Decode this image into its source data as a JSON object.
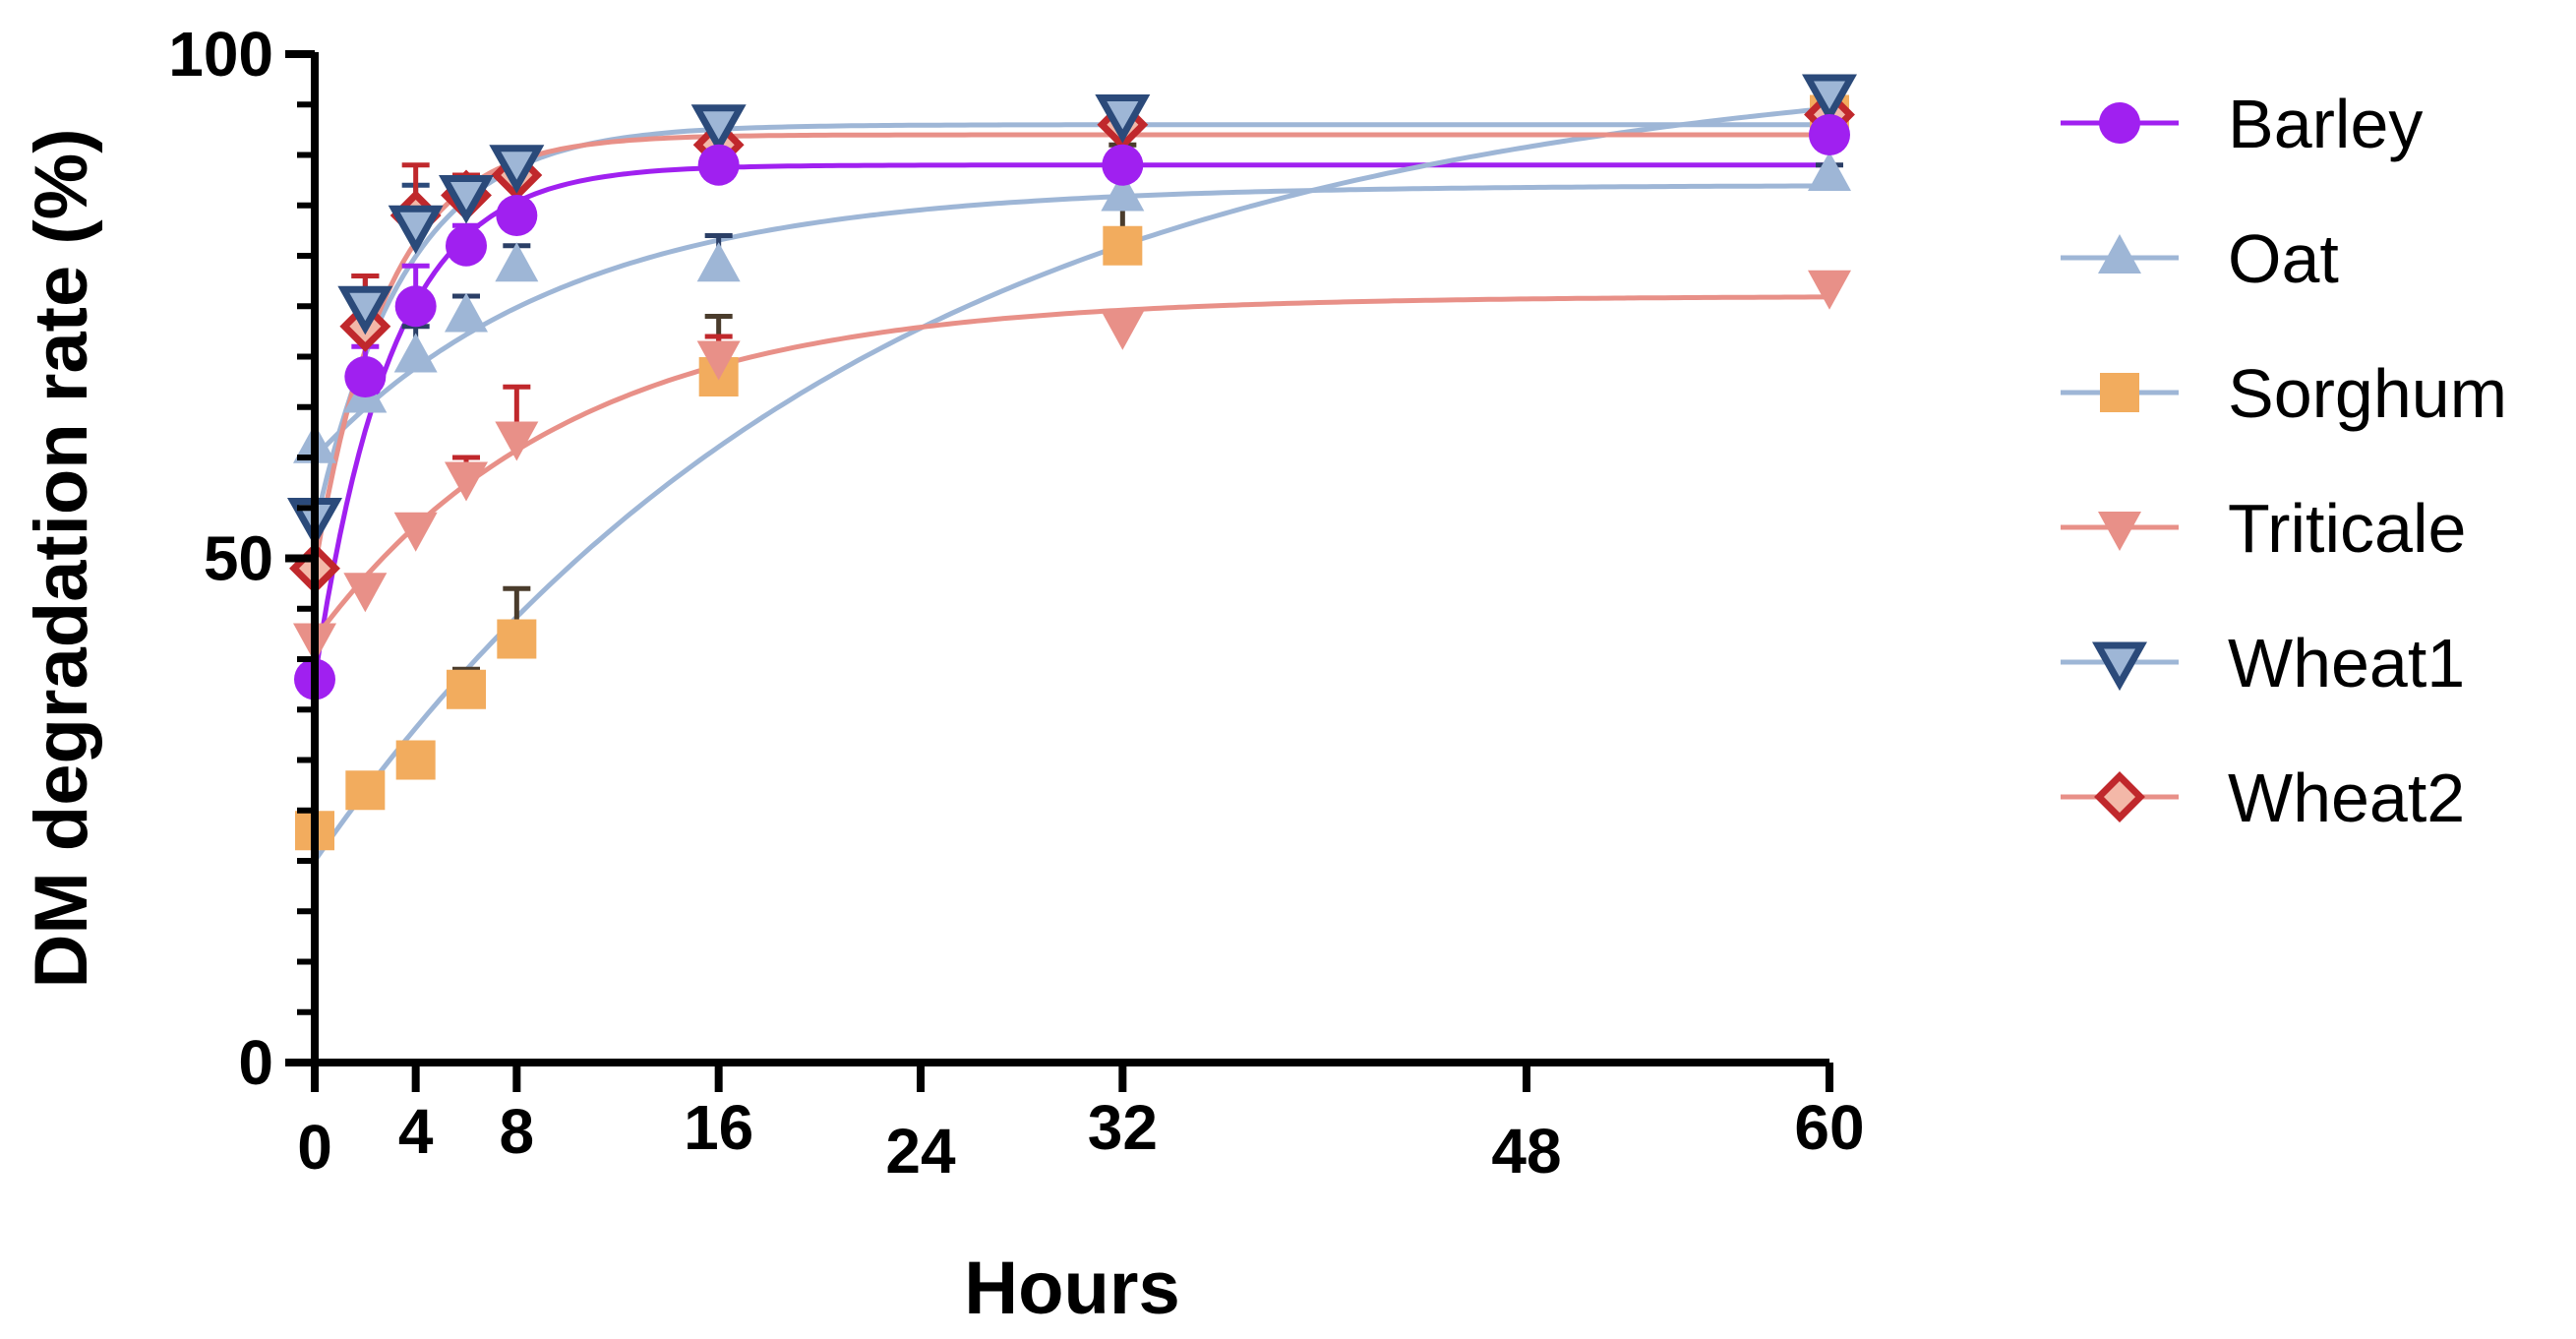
{
  "chart_data": {
    "type": "line",
    "title": "",
    "xlabel": "Hours",
    "ylabel": "DM degradation rate (%)",
    "xlim": [
      0,
      60
    ],
    "ylim": [
      0,
      100
    ],
    "x_ticks": [
      0,
      4,
      8,
      16,
      24,
      32,
      48,
      60
    ],
    "y_ticks": [
      0,
      50,
      100
    ],
    "y_minor_step": 5,
    "grid": false,
    "legend_position": "right",
    "series": [
      {
        "name": "Barley",
        "marker": "circle",
        "color": "#a020f0",
        "marker_color": "#a020f0",
        "error_color": "#a020f0",
        "x": [
          0,
          2,
          4,
          6,
          8,
          16,
          32,
          60
        ],
        "y": [
          38,
          68,
          75,
          81,
          84,
          89,
          89,
          92
        ],
        "err": [
          0,
          3,
          4,
          2,
          4,
          1,
          1,
          1
        ],
        "fit": {
          "a": 38,
          "b": 51,
          "c": 0.33
        }
      },
      {
        "name": "Oat",
        "marker": "triangle-up",
        "color": "#9eb6d6",
        "marker_color": "#9eb6d6",
        "error_color": "#2b3f66",
        "x": [
          0,
          2,
          4,
          6,
          8,
          16,
          32,
          60
        ],
        "y": [
          61,
          66,
          70,
          74,
          79,
          79,
          86,
          88
        ],
        "err": [
          0,
          3,
          3,
          2,
          2,
          3,
          2,
          1
        ],
        "fit": {
          "a": 60,
          "b": 27,
          "c": 0.1
        }
      },
      {
        "name": "Sorghum",
        "marker": "square",
        "color": "#9eb6d6",
        "marker_color": "#f2ac5e",
        "error_color": "#4a3c2c",
        "x": [
          0,
          2,
          4,
          6,
          8,
          16,
          32,
          60
        ],
        "y": [
          23,
          27,
          30,
          37,
          42,
          68,
          81,
          94
        ],
        "err": [
          0,
          1,
          1,
          2,
          5,
          6,
          10,
          1
        ],
        "fit": {
          "a": 20,
          "b": 80,
          "c": 0.045
        }
      },
      {
        "name": "Triticale",
        "marker": "triangle-down",
        "color": "#e89088",
        "marker_color": "#e89088",
        "error_color": "#c0282c",
        "x": [
          0,
          2,
          4,
          6,
          8,
          16,
          32,
          60
        ],
        "y": [
          42,
          47,
          53,
          58,
          62,
          70,
          73,
          77
        ],
        "err": [
          0,
          1,
          1,
          2,
          5,
          2,
          1,
          1
        ],
        "fit": {
          "a": 42,
          "b": 34,
          "c": 0.1
        }
      },
      {
        "name": "Wheat1",
        "marker": "triangle-down-open",
        "color": "#9eb6d6",
        "marker_color": "#2b4a7a",
        "error_color": "#2b4a7a",
        "x": [
          0,
          2,
          4,
          6,
          8,
          16,
          32,
          60
        ],
        "y": [
          54,
          75,
          83,
          86,
          89,
          93,
          94,
          96
        ],
        "err": [
          0,
          3,
          4,
          2,
          1,
          1,
          1,
          1
        ],
        "fit": {
          "a": 53,
          "b": 40,
          "c": 0.28
        }
      },
      {
        "name": "Wheat2",
        "marker": "diamond-open",
        "color": "#e89088",
        "marker_color": "#c0282c",
        "error_color": "#c0282c",
        "x": [
          0,
          2,
          4,
          6,
          8,
          16,
          32,
          60
        ],
        "y": [
          49,
          73,
          84,
          86,
          88,
          91,
          93,
          94
        ],
        "err": [
          0,
          5,
          5,
          2,
          2,
          1,
          1,
          1
        ],
        "fit": {
          "a": 49,
          "b": 43,
          "c": 0.35
        }
      }
    ]
  }
}
